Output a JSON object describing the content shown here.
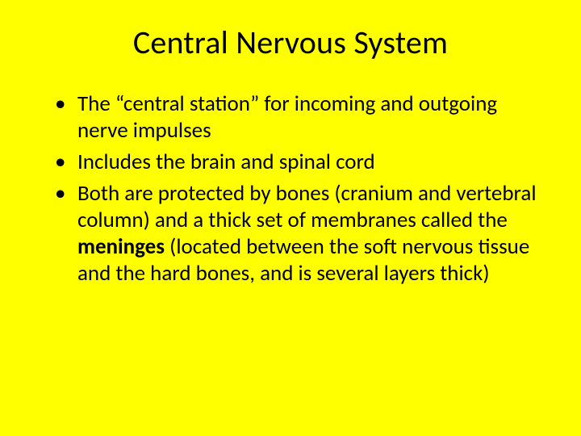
{
  "slide": {
    "background_color": "#ffff00",
    "text_color": "#000000",
    "font_family": "Calibri",
    "title": {
      "text": "Central Nervous System",
      "fontsize": 40,
      "align": "center"
    },
    "bullets": {
      "fontsize": 27,
      "items": [
        {
          "segments": [
            {
              "text": "The “central station” for incoming and outgoing nerve impulses",
              "bold": false
            }
          ]
        },
        {
          "segments": [
            {
              "text": "Includes the brain and spinal cord",
              "bold": false
            }
          ]
        },
        {
          "segments": [
            {
              "text": "Both are protected by bones (cranium and vertebral column) and a thick set of membranes called the ",
              "bold": false
            },
            {
              "text": "meninges",
              "bold": true
            },
            {
              "text": " (located between the soft nervous tissue and the hard bones, and is several layers thick)",
              "bold": false
            }
          ]
        }
      ]
    }
  }
}
